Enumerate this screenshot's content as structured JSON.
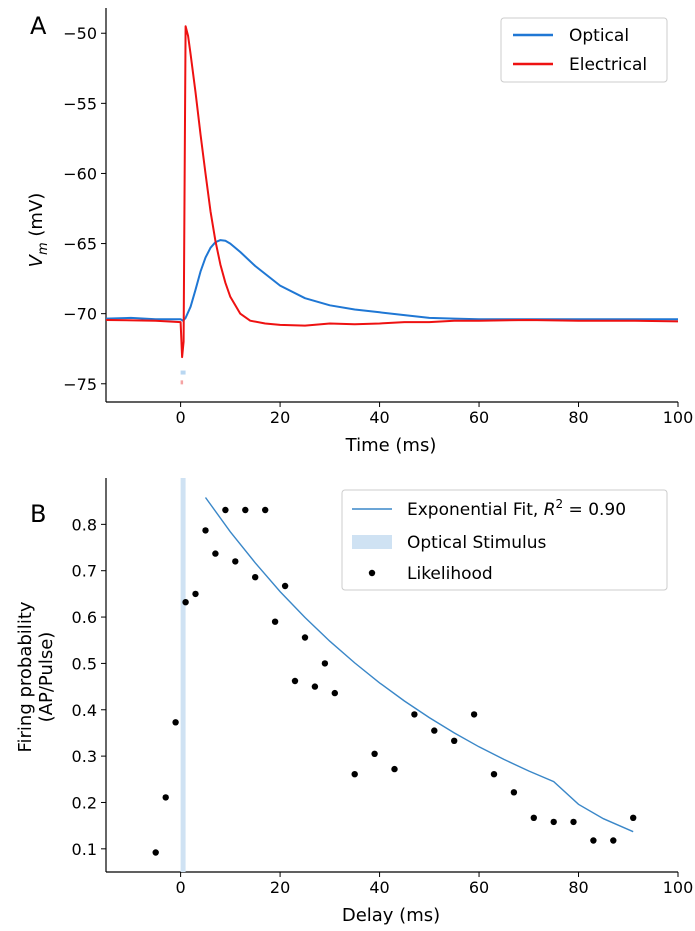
{
  "chart_data": [
    {
      "id": "A",
      "type": "line",
      "panel_label": "A",
      "xlabel": "Time (ms)",
      "ylabel_main": "V",
      "ylabel_sub": "m",
      "ylabel_unit": " (mV)",
      "xlim": [
        -15,
        100
      ],
      "ylim": [
        -76.3,
        -48.2
      ],
      "xticks": [
        0,
        20,
        40,
        60,
        80,
        100
      ],
      "yticks": [
        -75,
        -70,
        -65,
        -60,
        -55,
        -50
      ],
      "tick_labels_x": [
        "0",
        "20",
        "40",
        "60",
        "80",
        "100"
      ],
      "tick_labels_y": [
        "−75",
        "−70",
        "−65",
        "−60",
        "−55",
        "−50"
      ],
      "legend_position": "top-right",
      "series": [
        {
          "name": "Optical",
          "color": "#1f77d4",
          "x": [
            -15,
            -10,
            -5,
            0,
            0.5,
            1,
            2,
            3,
            4,
            5,
            6,
            7,
            8,
            9,
            10,
            12,
            15,
            20,
            25,
            30,
            35,
            40,
            45,
            50,
            55,
            60,
            70,
            80,
            90,
            100
          ],
          "y": [
            -70.35,
            -70.3,
            -70.4,
            -70.4,
            -70.5,
            -70.3,
            -69.5,
            -68.3,
            -67.0,
            -66.0,
            -65.3,
            -64.9,
            -64.75,
            -64.8,
            -65.0,
            -65.6,
            -66.6,
            -68.0,
            -68.9,
            -69.4,
            -69.7,
            -69.9,
            -70.1,
            -70.3,
            -70.35,
            -70.4,
            -70.4,
            -70.4,
            -70.4,
            -70.4
          ]
        },
        {
          "name": "Electrical",
          "color": "#ee1111",
          "x": [
            -15,
            -5,
            0,
            0.3,
            0.6,
            0.9,
            1.0,
            1.5,
            2,
            3,
            4,
            5,
            6,
            7,
            8,
            9,
            10,
            12,
            14,
            17,
            20,
            25,
            30,
            35,
            40,
            45,
            50,
            55,
            60,
            70,
            80,
            90,
            100
          ],
          "y": [
            -70.45,
            -70.5,
            -70.6,
            -73.1,
            -72.0,
            -55.0,
            -49.5,
            -50.2,
            -51.5,
            -54.2,
            -57.2,
            -60.0,
            -62.7,
            -64.8,
            -66.5,
            -67.8,
            -68.8,
            -70.0,
            -70.5,
            -70.7,
            -70.8,
            -70.85,
            -70.7,
            -70.75,
            -70.7,
            -70.6,
            -70.6,
            -70.5,
            -70.5,
            -70.45,
            -70.5,
            -70.5,
            -70.55
          ]
        }
      ],
      "stimulus_markers": [
        {
          "name": "optical-stimulus-marker",
          "x": [
            0,
            1
          ],
          "y": -74.2,
          "color": "#b9d7f1"
        },
        {
          "name": "electrical-stimulus-marker",
          "x": [
            0,
            0.5
          ],
          "y": -74.9,
          "color": "#f5a3a3"
        }
      ]
    },
    {
      "id": "B",
      "type": "scatter",
      "panel_label": "B",
      "xlabel": "Delay (ms)",
      "ylabel_line1": "Firing probability",
      "ylabel_line2": "(AP/Pulse)",
      "xlim": [
        -15,
        100
      ],
      "ylim": [
        0.05,
        0.9
      ],
      "xticks": [
        0,
        20,
        40,
        60,
        80,
        100
      ],
      "yticks": [
        0.1,
        0.2,
        0.3,
        0.4,
        0.5,
        0.6,
        0.7,
        0.8
      ],
      "tick_labels_x": [
        "0",
        "20",
        "40",
        "60",
        "80",
        "100"
      ],
      "tick_labels_y": [
        "0.1",
        "0.2",
        "0.3",
        "0.4",
        "0.5",
        "0.6",
        "0.7",
        "0.8"
      ],
      "legend_position": "top-right",
      "legend": {
        "fit_label": "Exponential Fit, ",
        "r2_label": "R",
        "r2_sup": "2",
        "r2_value": " = 0.90",
        "stimulus_label": "Optical Stimulus",
        "points_label": "Likelihood"
      },
      "stimulus_band": {
        "x": [
          0,
          1
        ],
        "color": "#cfe2f3"
      },
      "fit": {
        "color": "#3a87c8",
        "x": [
          5,
          10,
          15,
          20,
          25,
          30,
          35,
          40,
          45,
          50,
          55,
          60,
          65,
          70,
          75,
          80,
          85,
          91
        ],
        "y": [
          0.858,
          0.784,
          0.717,
          0.655,
          0.599,
          0.548,
          0.501,
          0.458,
          0.419,
          0.383,
          0.35,
          0.32,
          0.293,
          0.268,
          0.245,
          0.196,
          0.165,
          0.137
        ]
      },
      "points": {
        "color": "#000000",
        "x": [
          -5,
          -3,
          -1,
          1,
          3,
          5,
          7,
          9,
          11,
          13,
          15,
          17,
          19,
          21,
          23,
          25,
          27,
          29,
          31,
          35,
          39,
          43,
          47,
          51,
          55,
          59,
          63,
          67,
          71,
          75,
          79,
          83,
          87,
          91
        ],
        "y": [
          0.092,
          0.211,
          0.373,
          0.632,
          0.65,
          0.787,
          0.737,
          0.831,
          0.72,
          0.831,
          0.686,
          0.831,
          0.59,
          0.667,
          0.462,
          0.556,
          0.45,
          0.5,
          0.436,
          0.261,
          0.305,
          0.272,
          0.39,
          0.355,
          0.333,
          0.39,
          0.261,
          0.222,
          0.167,
          0.158,
          0.158,
          0.118,
          0.118,
          0.167
        ]
      }
    }
  ]
}
